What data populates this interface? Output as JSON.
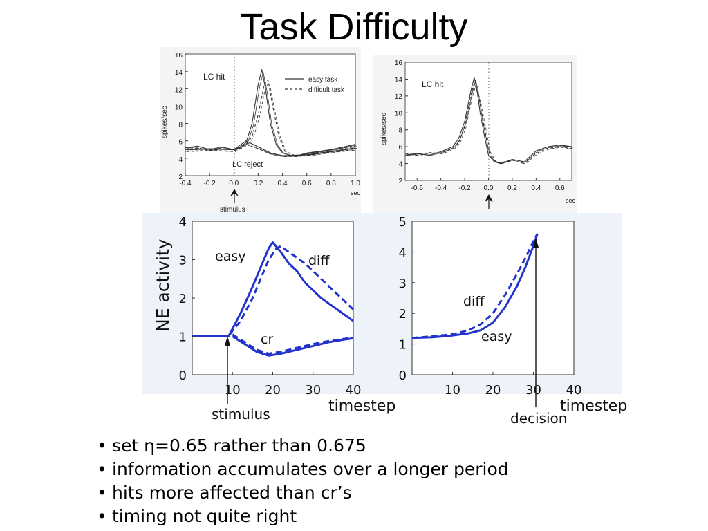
{
  "slide": {
    "title": "Task Difficulty",
    "bullets": [
      "set η=0.65 rather than 0.675",
      "information accumulates over a longer period",
      "hits more affected than cr’s",
      "timing not quite right"
    ]
  },
  "chart_data": [
    {
      "type": "line",
      "panel": "top-left",
      "xlim": [
        -0.4,
        1.0
      ],
      "ylim": [
        2,
        16
      ],
      "x_ticks": [
        "-0.4",
        "-0.2",
        "0.0",
        "0.2",
        "0.4",
        "0.6",
        "0.8",
        "1.0"
      ],
      "y_ticks": [
        "2",
        "4",
        "6",
        "8",
        "10",
        "12",
        "14",
        "16"
      ],
      "xlabel": "sec",
      "ylabel": "spikes/sec",
      "legend": [
        "easy task",
        "difficult task"
      ],
      "legend_position": "top-right",
      "annotations": [
        "LC hit",
        "LC reject",
        "stimulus"
      ],
      "series": [
        {
          "name": "easy task",
          "style": "solid",
          "x": [
            -0.4,
            -0.3,
            -0.2,
            -0.1,
            0.0,
            0.05,
            0.1,
            0.15,
            0.2,
            0.23,
            0.26,
            0.3,
            0.35,
            0.4,
            0.5,
            0.6,
            0.7,
            0.8,
            0.9,
            1.0
          ],
          "y": [
            5.2,
            5.4,
            5.0,
            5.3,
            5.0,
            5.3,
            5.8,
            8.0,
            12.5,
            14.2,
            12.0,
            8.0,
            5.5,
            4.6,
            4.2,
            4.6,
            4.8,
            5.0,
            5.3,
            5.6
          ]
        },
        {
          "name": "difficult task",
          "style": "dashed",
          "x": [
            -0.4,
            -0.3,
            -0.2,
            -0.1,
            0.0,
            0.05,
            0.1,
            0.15,
            0.2,
            0.25,
            0.28,
            0.32,
            0.37,
            0.42,
            0.5,
            0.6,
            0.7,
            0.8,
            0.9,
            1.0
          ],
          "y": [
            5.0,
            5.2,
            4.9,
            5.1,
            5.0,
            5.2,
            5.6,
            6.5,
            9.0,
            12.5,
            13.0,
            10.0,
            6.5,
            4.8,
            4.3,
            4.5,
            4.7,
            5.0,
            5.2,
            5.4
          ]
        },
        {
          "name": "LC reject easy",
          "style": "solid",
          "x": [
            -0.4,
            -0.2,
            0.0,
            0.1,
            0.2,
            0.3,
            0.4,
            0.6,
            0.8,
            1.0
          ],
          "y": [
            5.0,
            5.1,
            5.0,
            6.0,
            5.3,
            4.6,
            4.3,
            4.4,
            4.8,
            5.2
          ]
        },
        {
          "name": "LC reject difficult",
          "style": "dashed",
          "x": [
            -0.4,
            -0.2,
            0.0,
            0.1,
            0.2,
            0.3,
            0.4,
            0.6,
            0.8,
            1.0
          ],
          "y": [
            4.8,
            4.9,
            4.8,
            5.6,
            5.1,
            4.5,
            4.2,
            4.3,
            4.7,
            5.0
          ]
        }
      ]
    },
    {
      "type": "line",
      "panel": "top-right",
      "xlim": [
        -0.7,
        0.7
      ],
      "ylim": [
        2,
        16
      ],
      "x_ticks": [
        "-0.6",
        "-0.4",
        "-0.2",
        "0.0",
        "0.2",
        "0.4",
        "0.6"
      ],
      "y_ticks": [
        "2",
        "4",
        "6",
        "8",
        "10",
        "12",
        "14",
        "16"
      ],
      "xlabel": "sec",
      "ylabel": "spikes/sec",
      "annotations": [
        "LC hit"
      ],
      "series": [
        {
          "name": "easy task",
          "style": "solid",
          "x": [
            -0.7,
            -0.6,
            -0.5,
            -0.4,
            -0.3,
            -0.25,
            -0.2,
            -0.15,
            -0.12,
            -0.1,
            -0.07,
            -0.03,
            0.0,
            0.05,
            0.1,
            0.2,
            0.3,
            0.4,
            0.5,
            0.6,
            0.7
          ],
          "y": [
            5.0,
            5.2,
            5.0,
            5.4,
            6.0,
            7.0,
            9.0,
            12.5,
            14.2,
            13.0,
            10.0,
            7.0,
            5.0,
            4.2,
            4.0,
            4.5,
            4.2,
            5.5,
            6.0,
            6.2,
            6.0
          ]
        },
        {
          "name": "difficult task",
          "style": "dashed",
          "x": [
            -0.7,
            -0.6,
            -0.5,
            -0.4,
            -0.3,
            -0.25,
            -0.2,
            -0.15,
            -0.12,
            -0.1,
            -0.07,
            -0.03,
            0.0,
            0.05,
            0.1,
            0.2,
            0.3,
            0.4,
            0.5,
            0.6,
            0.7
          ],
          "y": [
            5.2,
            5.0,
            5.3,
            5.2,
            5.8,
            6.5,
            8.5,
            12.0,
            13.5,
            12.8,
            11.0,
            8.0,
            5.5,
            4.3,
            4.1,
            4.4,
            4.0,
            5.2,
            5.8,
            6.0,
            5.8
          ]
        }
      ]
    },
    {
      "type": "line",
      "panel": "bottom-left",
      "xlim": [
        0,
        40
      ],
      "ylim": [
        0,
        4
      ],
      "x_ticks": [
        "10",
        "20",
        "30",
        "40"
      ],
      "y_ticks": [
        "0",
        "1",
        "2",
        "3",
        "4"
      ],
      "xlabel": "timestep",
      "ylabel": "NE activity",
      "annotations": [
        "easy",
        "diff",
        "cr",
        "stimulus"
      ],
      "series": [
        {
          "name": "easy",
          "style": "solid",
          "x": [
            0,
            9,
            10,
            12,
            15,
            17,
            19,
            20,
            22,
            24,
            26,
            28,
            30,
            32,
            34,
            36,
            38,
            40
          ],
          "y": [
            1.0,
            1.0,
            1.2,
            1.6,
            2.3,
            2.8,
            3.3,
            3.45,
            3.2,
            2.9,
            2.7,
            2.4,
            2.2,
            2.0,
            1.85,
            1.7,
            1.55,
            1.4
          ]
        },
        {
          "name": "diff",
          "style": "dashed",
          "x": [
            0,
            9,
            10,
            12,
            15,
            17,
            19,
            21,
            22,
            24,
            26,
            28,
            30,
            32,
            34,
            36,
            38,
            40
          ],
          "y": [
            1.0,
            1.0,
            1.15,
            1.4,
            2.0,
            2.5,
            3.0,
            3.3,
            3.35,
            3.2,
            3.05,
            2.9,
            2.7,
            2.5,
            2.3,
            2.1,
            1.9,
            1.7
          ]
        },
        {
          "name": "cr easy",
          "style": "solid",
          "x": [
            10,
            13,
            16,
            19,
            22,
            26,
            30,
            34,
            38,
            40
          ],
          "y": [
            1.0,
            0.8,
            0.6,
            0.5,
            0.55,
            0.65,
            0.75,
            0.85,
            0.92,
            0.95
          ]
        },
        {
          "name": "cr diff",
          "style": "dashed",
          "x": [
            10,
            13,
            16,
            19,
            22,
            26,
            30,
            34,
            38,
            40
          ],
          "y": [
            1.05,
            0.85,
            0.65,
            0.55,
            0.6,
            0.7,
            0.8,
            0.88,
            0.94,
            0.97
          ]
        }
      ]
    },
    {
      "type": "line",
      "panel": "bottom-right",
      "xlim": [
        0,
        40
      ],
      "ylim": [
        0,
        5
      ],
      "x_ticks": [
        "10",
        "20",
        "30",
        "40"
      ],
      "y_ticks": [
        "0",
        "1",
        "2",
        "3",
        "4",
        "5"
      ],
      "xlabel": "timestep",
      "annotations": [
        "diff",
        "easy",
        "decision"
      ],
      "series": [
        {
          "name": "easy",
          "style": "solid",
          "x": [
            0,
            5,
            10,
            14,
            17,
            20,
            23,
            26,
            28,
            30,
            31
          ],
          "y": [
            1.2,
            1.22,
            1.28,
            1.35,
            1.45,
            1.7,
            2.2,
            2.9,
            3.5,
            4.2,
            4.6
          ]
        },
        {
          "name": "diff",
          "style": "dashed",
          "x": [
            0,
            5,
            10,
            14,
            17,
            20,
            23,
            26,
            28,
            30,
            31
          ],
          "y": [
            1.2,
            1.25,
            1.32,
            1.45,
            1.65,
            2.0,
            2.6,
            3.3,
            3.8,
            4.35,
            4.6
          ]
        }
      ]
    }
  ]
}
